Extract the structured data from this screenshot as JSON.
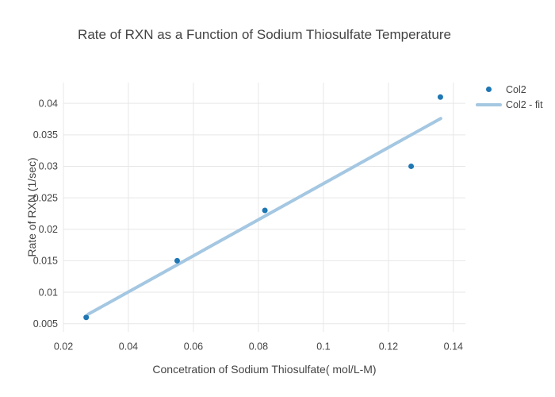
{
  "chart_data": {
    "type": "scatter",
    "title": "Rate of RXN as a Function of Sodium Thiosulfate Temperature",
    "xlabel": "Concetration of Sodium Thiosulfate( mol/L-M)",
    "ylabel": "Rate of RXN (1/sec)",
    "xlim": [
      0.02,
      0.1437
    ],
    "ylim": [
      0.0037,
      0.0433
    ],
    "grid": true,
    "legend_position": "top-right-outside",
    "xticks": {
      "values": [
        0.02,
        0.04,
        0.06,
        0.08,
        0.1,
        0.12,
        0.14
      ],
      "labels": [
        "0.02",
        "0.04",
        "0.06",
        "0.08",
        "0.1",
        "0.12",
        "0.14"
      ]
    },
    "yticks": {
      "values": [
        0.005,
        0.01,
        0.015,
        0.02,
        0.025,
        0.03,
        0.035,
        0.04
      ],
      "labels": [
        "0.005",
        "0.01",
        "0.015",
        "0.02",
        "0.025",
        "0.03",
        "0.035",
        "0.04"
      ]
    },
    "series": [
      {
        "name": "Col2",
        "mode": "markers",
        "color": "#1f77b4",
        "marker_diameter": 7,
        "x": [
          0.027,
          0.055,
          0.082,
          0.127,
          0.136
        ],
        "y": [
          0.006,
          0.015,
          0.023,
          0.03,
          0.041
        ]
      },
      {
        "name": "Col2 - fit",
        "mode": "line",
        "color": "#a4c7e2",
        "line_width": 4,
        "x": [
          0.0276,
          0.1361
        ],
        "y": [
          0.0065,
          0.0376
        ]
      }
    ],
    "colors": {
      "background": "#ffffff",
      "grid": "#e7e7e7",
      "text": "#444444"
    }
  }
}
